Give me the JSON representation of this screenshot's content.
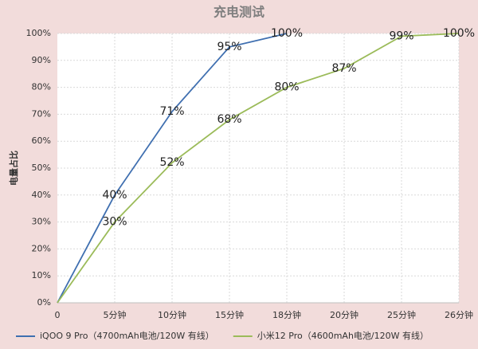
{
  "chart_data": {
    "type": "line",
    "title": "充电测试",
    "y_label": "电量占比",
    "categories": [
      "0",
      "5分钟",
      "10分钟",
      "15分钟",
      "18分钟",
      "20分钟",
      "25分钟",
      "26分钟"
    ],
    "series": [
      {
        "name": "iQOO 9 Pro（4700mAh电池/120W 有线）",
        "color": "#3f6fb0",
        "values": [
          0,
          40,
          71,
          95,
          100,
          null,
          null,
          null
        ],
        "value_labels": [
          null,
          "40%",
          "71%",
          "95%",
          "100%",
          null,
          null,
          null
        ]
      },
      {
        "name": "小米12 Pro（4600mAh电池/120W 有线）",
        "color": "#9bbb59",
        "values": [
          0,
          30,
          52,
          68,
          80,
          87,
          99,
          100
        ],
        "value_labels": [
          null,
          "30%",
          "52%",
          "68%",
          "80%",
          "87%",
          "99%",
          "100%"
        ]
      }
    ],
    "ylim": [
      0,
      100
    ],
    "yticks": [
      {
        "value": 0,
        "label": "0%"
      },
      {
        "value": 10,
        "label": "10%"
      },
      {
        "value": 20,
        "label": "20%"
      },
      {
        "value": 30,
        "label": "30%"
      },
      {
        "value": 40,
        "label": "40%"
      },
      {
        "value": 50,
        "label": "50%"
      },
      {
        "value": 60,
        "label": "60%"
      },
      {
        "value": 70,
        "label": "70%"
      },
      {
        "value": 80,
        "label": "80%"
      },
      {
        "value": 90,
        "label": "90%"
      },
      {
        "value": 100,
        "label": "100%"
      }
    ],
    "grid": true,
    "legend": "bottom"
  }
}
